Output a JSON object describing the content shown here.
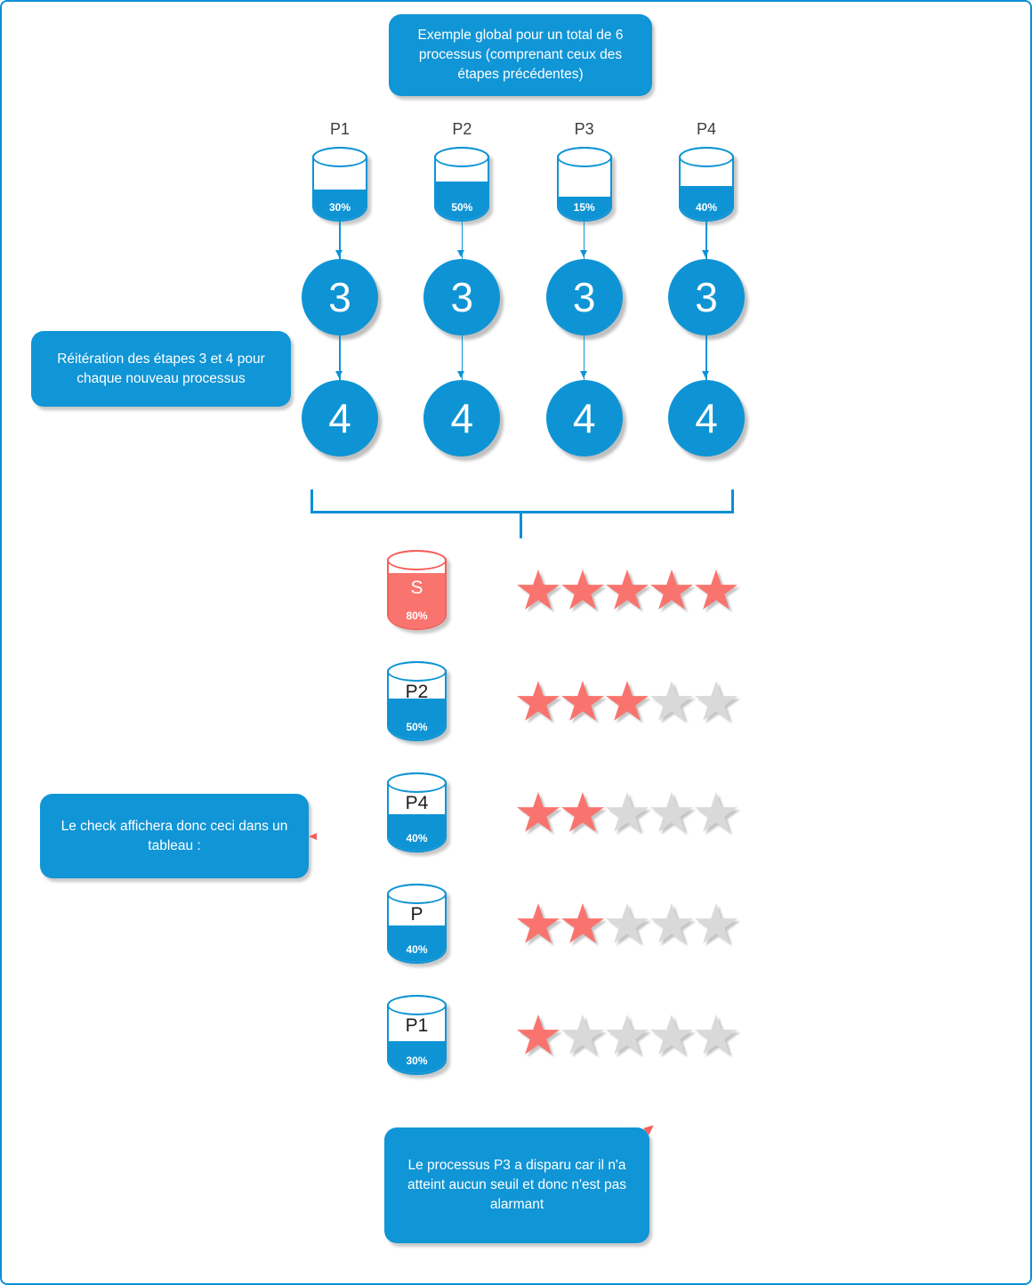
{
  "colors": {
    "blue": "#0e94d5",
    "red_fill": "#f9746e",
    "red_line": "#f4605c",
    "star_red": "#f9746e",
    "star_gray": "#d9d9d9",
    "page_border": "#0a90d4"
  },
  "callouts": {
    "top": "Exemple global pour un total de 6 processus (comprenant ceux des étapes précédentes)",
    "left_upper": "Réitération des étapes 3 et 4 pour chaque nouveau processus",
    "left_lower": "Le check affichera donc ceci dans un tableau :",
    "bottom": "Le processus P3 a disparu car il n'a atteint aucun seuil et donc n'est pas alarmant"
  },
  "step_circles": {
    "first": "3",
    "second": "4"
  },
  "processes": [
    {
      "label": "P1",
      "percent": "30%",
      "fill": 30
    },
    {
      "label": "P2",
      "percent": "50%",
      "fill": 50
    },
    {
      "label": "P3",
      "percent": "15%",
      "fill": 15
    },
    {
      "label": "P4",
      "percent": "40%",
      "fill": 40
    }
  ],
  "ratings": [
    {
      "label": "S",
      "percent": "80%",
      "fill": 80,
      "color": "red",
      "stars": 5
    },
    {
      "label": "P2",
      "percent": "50%",
      "fill": 50,
      "color": "blue",
      "stars": 3
    },
    {
      "label": "P4",
      "percent": "40%",
      "fill": 40,
      "color": "blue",
      "stars": 2
    },
    {
      "label": "P",
      "percent": "40%",
      "fill": 40,
      "color": "blue",
      "stars": 2
    },
    {
      "label": "P1",
      "percent": "30%",
      "fill": 30,
      "color": "blue",
      "stars": 1
    }
  ],
  "stars_total": 5
}
